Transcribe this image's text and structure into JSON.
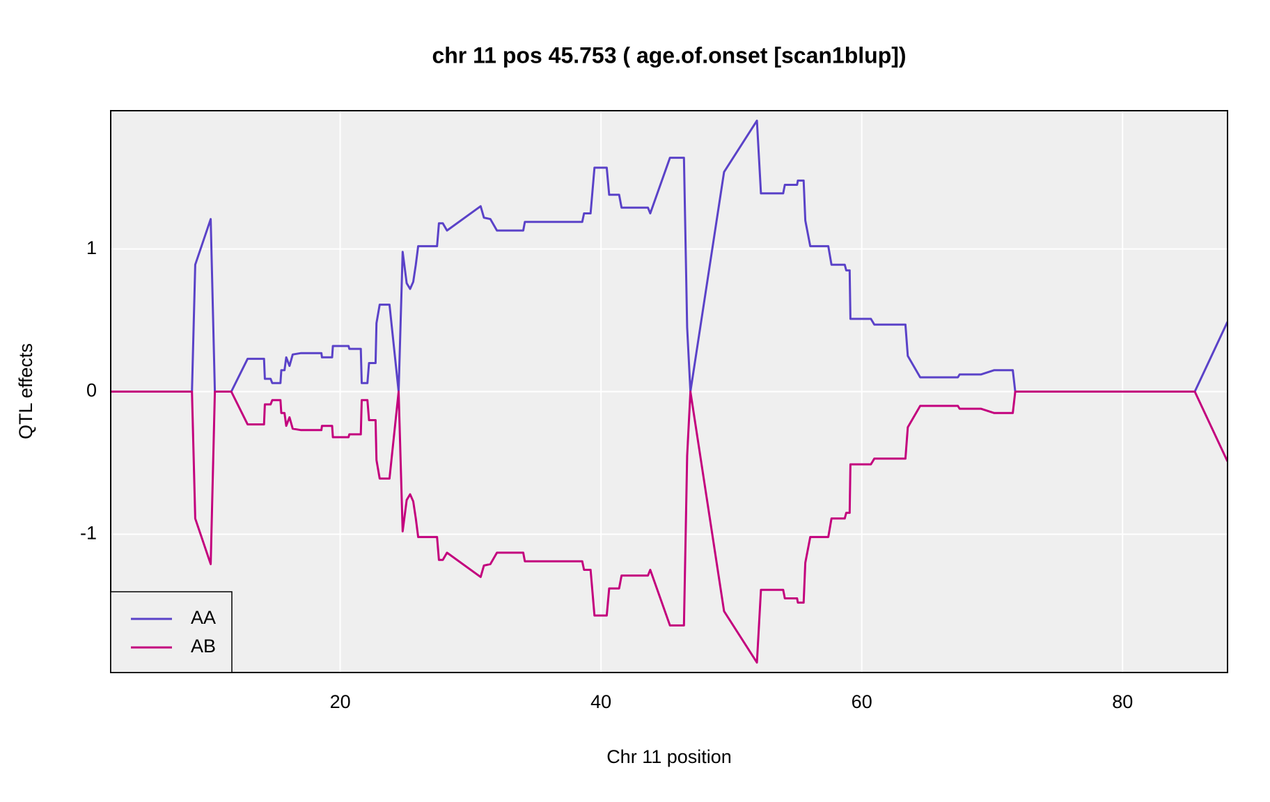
{
  "chart_data": {
    "type": "line",
    "title": "chr 11 pos 45.753 ( age.of.onset  [scan1blup])",
    "x_label": "Chr 11 position",
    "y_label": "QTL effects",
    "xlim": [
      2.4,
      88.05
    ],
    "ylim": [
      -1.97,
      1.97
    ],
    "xticks": [
      20,
      40,
      60,
      80
    ],
    "yticks": [
      -1,
      0,
      1
    ],
    "grid": true,
    "legend": "bottom-left",
    "x": [
      2.4,
      8.63,
      8.88,
      10.07,
      10.39,
      11.65,
      12.9,
      14.16,
      14.22,
      14.66,
      14.79,
      15.42,
      15.48,
      15.73,
      15.86,
      16.11,
      16.36,
      17.0,
      18.56,
      18.6,
      19.38,
      19.44,
      20.64,
      20.7,
      21.58,
      21.65,
      22.09,
      22.21,
      22.71,
      22.78,
      23.03,
      23.78,
      24.48,
      24.79,
      25.1,
      25.36,
      25.6,
      25.8,
      25.98,
      27.43,
      27.57,
      27.87,
      28.19,
      30.77,
      31.02,
      31.52,
      32.02,
      34.04,
      34.16,
      38.56,
      38.7,
      39.2,
      39.5,
      40.44,
      40.63,
      41.39,
      41.58,
      43.6,
      43.78,
      45.29,
      46.36,
      46.61,
      46.86,
      49.44,
      51.96,
      52.27,
      53.97,
      54.1,
      55.04,
      55.1,
      55.54,
      55.67,
      56.05,
      57.43,
      57.68,
      58.69,
      58.81,
      59.07,
      59.13,
      60.7,
      60.96,
      63.35,
      63.53,
      64.48,
      67.37,
      67.5,
      69.13,
      70.14,
      71.58,
      71.77,
      85.54,
      88.05
    ],
    "series": [
      {
        "name": "AA",
        "color": "#5a42c8",
        "values": [
          0,
          0,
          0.89,
          1.21,
          0,
          0,
          0.23,
          0.23,
          0.09,
          0.09,
          0.06,
          0.06,
          0.15,
          0.15,
          0.24,
          0.18,
          0.26,
          0.27,
          0.27,
          0.24,
          0.24,
          0.32,
          0.32,
          0.3,
          0.3,
          0.06,
          0.06,
          0.2,
          0.2,
          0.48,
          0.61,
          0.61,
          0,
          0.98,
          0.76,
          0.72,
          0.77,
          0.89,
          1.02,
          1.02,
          1.18,
          1.18,
          1.13,
          1.3,
          1.22,
          1.21,
          1.13,
          1.13,
          1.19,
          1.19,
          1.25,
          1.25,
          1.57,
          1.57,
          1.38,
          1.38,
          1.29,
          1.29,
          1.25,
          1.64,
          1.64,
          0.45,
          0,
          1.54,
          1.9,
          1.39,
          1.39,
          1.45,
          1.45,
          1.48,
          1.48,
          1.2,
          1.02,
          1.02,
          0.89,
          0.89,
          0.85,
          0.85,
          0.51,
          0.51,
          0.47,
          0.47,
          0.25,
          0.1,
          0.1,
          0.12,
          0.12,
          0.15,
          0.15,
          0,
          0,
          0.49
        ]
      },
      {
        "name": "AB",
        "color": "#c3007d",
        "values": [
          0,
          0,
          -0.89,
          -1.21,
          0,
          0,
          -0.23,
          -0.23,
          -0.09,
          -0.09,
          -0.06,
          -0.06,
          -0.15,
          -0.15,
          -0.24,
          -0.18,
          -0.26,
          -0.27,
          -0.27,
          -0.24,
          -0.24,
          -0.32,
          -0.32,
          -0.3,
          -0.3,
          -0.06,
          -0.06,
          -0.2,
          -0.2,
          -0.48,
          -0.61,
          -0.61,
          0,
          -0.98,
          -0.76,
          -0.72,
          -0.77,
          -0.89,
          -1.02,
          -1.02,
          -1.18,
          -1.18,
          -1.13,
          -1.3,
          -1.22,
          -1.21,
          -1.13,
          -1.13,
          -1.19,
          -1.19,
          -1.25,
          -1.25,
          -1.57,
          -1.57,
          -1.38,
          -1.38,
          -1.29,
          -1.29,
          -1.25,
          -1.64,
          -1.64,
          -0.45,
          0,
          -1.54,
          -1.9,
          -1.39,
          -1.39,
          -1.45,
          -1.45,
          -1.48,
          -1.48,
          -1.2,
          -1.02,
          -1.02,
          -0.89,
          -0.89,
          -0.85,
          -0.85,
          -0.51,
          -0.51,
          -0.47,
          -0.47,
          -0.25,
          -0.1,
          -0.1,
          -0.12,
          -0.12,
          -0.15,
          -0.15,
          0,
          0,
          -0.49
        ]
      }
    ]
  }
}
